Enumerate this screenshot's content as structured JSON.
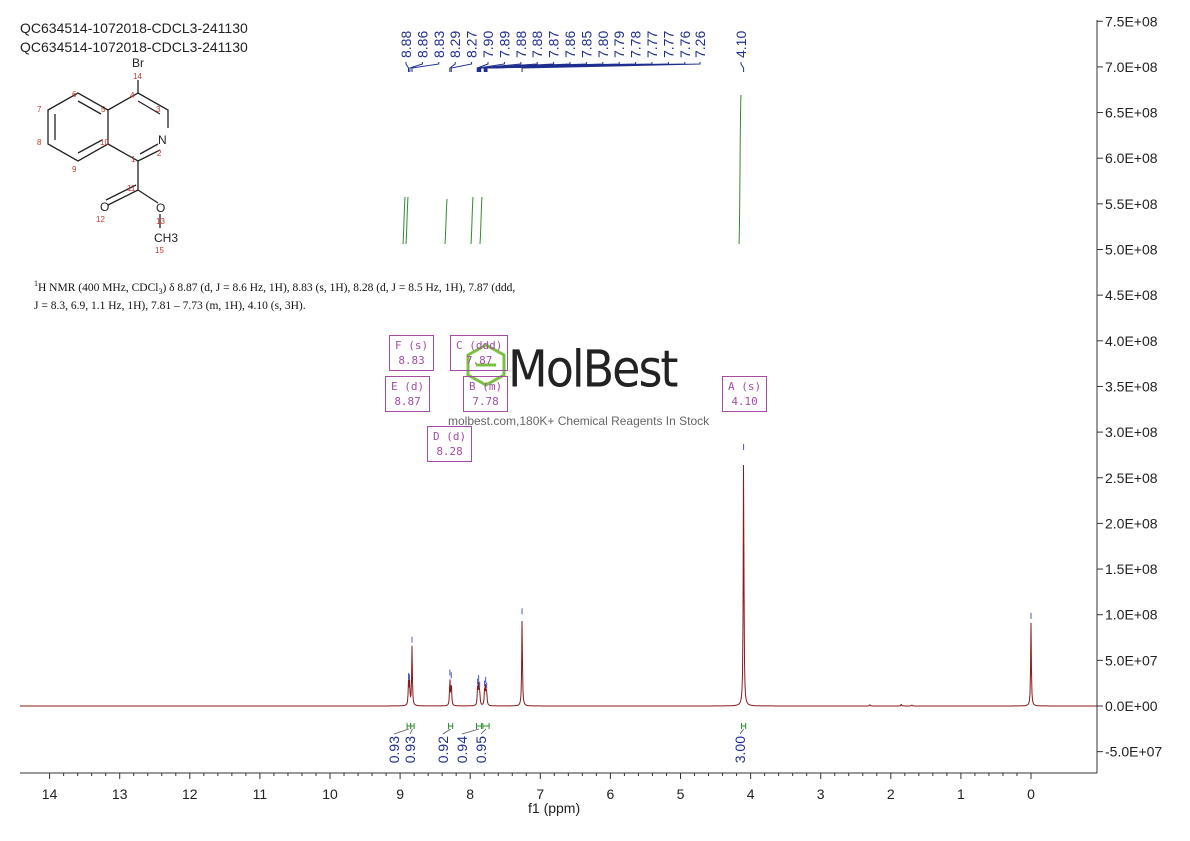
{
  "header": {
    "line1": "QC634514-1072018-CDCL3-241130",
    "line2": "QC634514-1072018-CDCL3-241130"
  },
  "description": {
    "prefix_sup": "1",
    "line1_a": "H NMR (400 MHz, CDCl",
    "line1_sub": "3",
    "line1_b": ") δ 8.87 (d, J = 8.6 Hz, 1H), 8.83 (s, 1H), 8.28 (d, J = 8.5 Hz, 1H), 7.87 (ddd,",
    "line2": "J = 8.3, 6.9, 1.1 Hz, 1H), 7.81 – 7.73 (m, 1H), 4.10 (s, 3H)."
  },
  "watermark": {
    "brand": "MolBest",
    "tagline": "molbest.com,180K+ Chemical Reagents In Stock"
  },
  "multiplets": [
    {
      "id": "F",
      "label": "F (s)",
      "shift": "8.83"
    },
    {
      "id": "E",
      "label": "E (d)",
      "shift": "8.87"
    },
    {
      "id": "C",
      "label": "C (ddd)",
      "shift": "7.87"
    },
    {
      "id": "B",
      "label": "B (m)",
      "shift": "7.78"
    },
    {
      "id": "D",
      "label": "D (d)",
      "shift": "8.28"
    },
    {
      "id": "A",
      "label": "A (s)",
      "shift": "4.10"
    }
  ],
  "structure": {
    "atoms": [
      {
        "sym": "Br",
        "num": "14"
      },
      {
        "sym": "N",
        "num": "2"
      },
      {
        "sym": "O",
        "num": "12"
      },
      {
        "sym": "O",
        "num": "13"
      },
      {
        "sym": "CH3",
        "num": "15"
      }
    ],
    "ring_numbers": [
      "1",
      "3",
      "4",
      "5",
      "6",
      "7",
      "8",
      "9",
      "10",
      "11"
    ]
  },
  "chart_data": {
    "type": "line",
    "title": "QC634514-1072018-CDCL3-241130",
    "xlabel": "f1 (ppm)",
    "ylabel": "",
    "xlim": [
      14.3,
      -0.9
    ],
    "x_reversed": true,
    "ylim": [
      -70000000,
      770000000
    ],
    "x_ticks": [
      "14",
      "13",
      "12",
      "11",
      "10",
      "9",
      "8",
      "7",
      "6",
      "5",
      "4",
      "3",
      "2",
      "1",
      "0"
    ],
    "x_tick_values": [
      14,
      13,
      12,
      11,
      10,
      9,
      8,
      7,
      6,
      5,
      4,
      3,
      2,
      1,
      0
    ],
    "y_ticks": [
      "-5.0E+07",
      "0.0E+00",
      "5.0E+07",
      "1.0E+08",
      "1.5E+08",
      "2.0E+08",
      "2.5E+08",
      "3.0E+08",
      "3.5E+08",
      "4.0E+08",
      "4.5E+08",
      "5.0E+08",
      "5.5E+08",
      "6.0E+08",
      "6.5E+08",
      "7.0E+08",
      "7.5E+08"
    ],
    "y_tick_values": [
      -50000000,
      0,
      50000000,
      100000000,
      150000000,
      200000000,
      250000000,
      300000000,
      350000000,
      400000000,
      450000000,
      500000000,
      550000000,
      600000000,
      650000000,
      700000000,
      750000000
    ],
    "peak_labels": [
      "8.88",
      "8.86",
      "8.83",
      "8.29",
      "8.27",
      "7.90",
      "7.89",
      "7.88",
      "7.88",
      "7.87",
      "7.86",
      "7.85",
      "7.80",
      "7.79",
      "7.78",
      "7.77",
      "7.77",
      "7.76",
      "7.26",
      "4.10"
    ],
    "peak_label_ppm": [
      8.88,
      8.86,
      8.83,
      8.29,
      8.27,
      7.9,
      7.89,
      7.88,
      7.88,
      7.87,
      7.86,
      7.85,
      7.8,
      7.79,
      7.78,
      7.77,
      7.77,
      7.76,
      7.26,
      4.1
    ],
    "peaks": [
      {
        "ppm": 8.88,
        "height": 25000000
      },
      {
        "ppm": 8.865,
        "height": 24000000
      },
      {
        "ppm": 8.83,
        "height": 65000000
      },
      {
        "ppm": 8.29,
        "height": 29000000
      },
      {
        "ppm": 8.27,
        "height": 26000000
      },
      {
        "ppm": 7.895,
        "height": 19000000
      },
      {
        "ppm": 7.88,
        "height": 23000000
      },
      {
        "ppm": 7.865,
        "height": 16000000
      },
      {
        "ppm": 7.795,
        "height": 17000000
      },
      {
        "ppm": 7.78,
        "height": 21000000
      },
      {
        "ppm": 7.765,
        "height": 15000000
      },
      {
        "ppm": 7.26,
        "height": 96000000
      },
      {
        "ppm": 4.1,
        "height": 276000000
      },
      {
        "ppm": 0.0,
        "height": 91000000
      },
      {
        "ppm": 2.3,
        "height": 1500000
      },
      {
        "ppm": 1.85,
        "height": 2000000
      },
      {
        "ppm": 1.7,
        "height": 1200000
      }
    ],
    "integrals": [
      {
        "from": 8.9,
        "to": 8.85,
        "value": "0.93"
      },
      {
        "from": 8.85,
        "to": 8.8,
        "value": "0.93"
      },
      {
        "from": 8.31,
        "to": 8.25,
        "value": "0.92"
      },
      {
        "from": 7.91,
        "to": 7.84,
        "value": "0.94"
      },
      {
        "from": 7.82,
        "to": 7.73,
        "value": "0.95"
      },
      {
        "from": 4.13,
        "to": 4.07,
        "value": "3.00"
      }
    ],
    "colors": {
      "spectrum": "#8b1a1a",
      "peak_label": "#1f2f8f",
      "integral": "#2e8b2e",
      "annotation": "#a64ca6"
    }
  }
}
